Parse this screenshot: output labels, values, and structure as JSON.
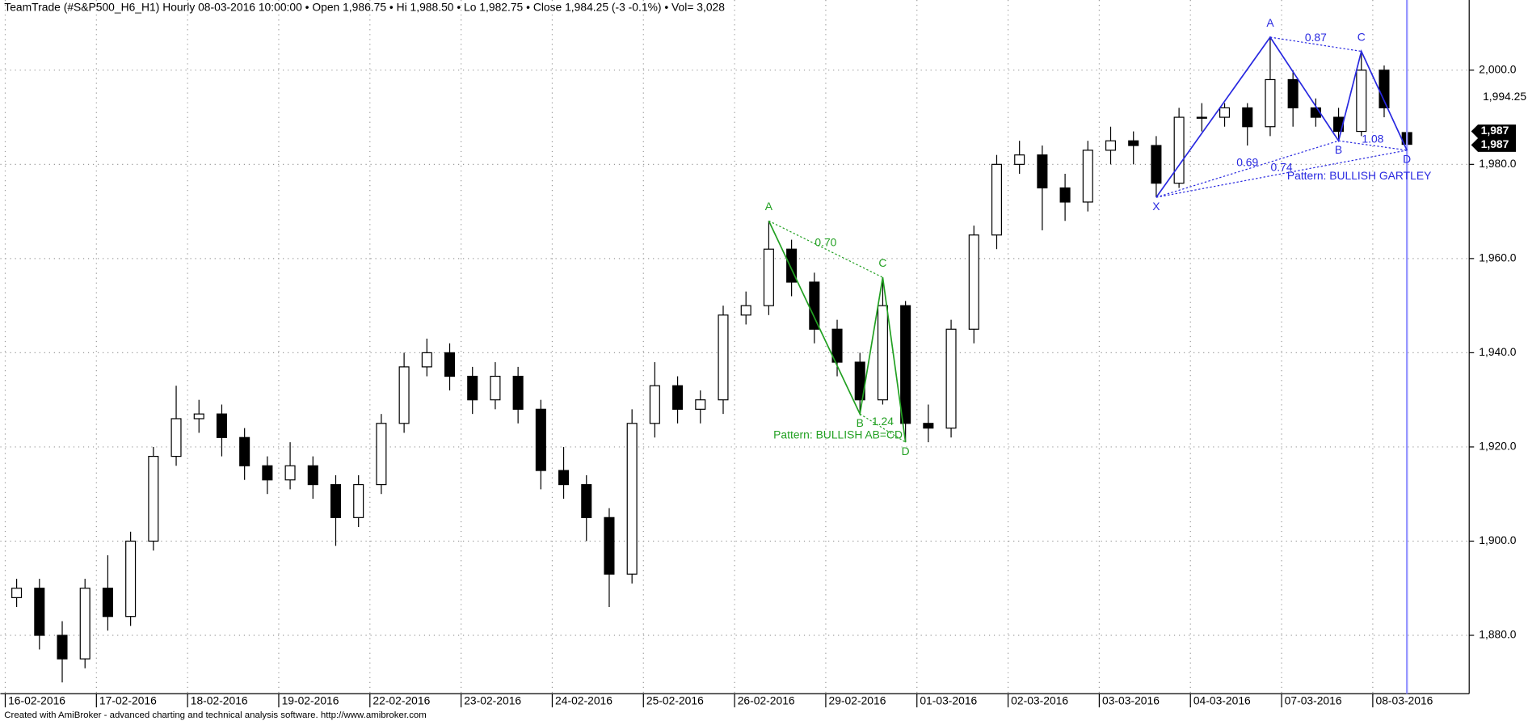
{
  "chart_data": {
    "type": "candlestick",
    "title": "TeamTrade (#S&P500_H6_H1) Hourly  08-03-2016 10:00:00  •  Open 1,986.75  •  Hi 1,988.50  •  Lo 1,982.75  •  Close 1,984.25 (-3 -0.1%)  •  Vol= 3,028",
    "footer": "Created with AmiBroker - advanced charting and technical analysis software. http://www.amibroker.com",
    "categories": [
      "16-02-2016",
      null,
      null,
      null,
      "17-02-2016",
      null,
      null,
      null,
      "18-02-2016",
      null,
      null,
      null,
      "19-02-2016",
      null,
      null,
      null,
      "22-02-2016",
      null,
      null,
      null,
      "23-02-2016",
      null,
      null,
      null,
      "24-02-2016",
      null,
      null,
      null,
      "25-02-2016",
      null,
      null,
      null,
      "26-02-2016",
      null,
      null,
      null,
      "29-02-2016",
      null,
      null,
      null,
      "01-03-2016",
      null,
      null,
      null,
      "02-03-2016",
      null,
      null,
      null,
      "03-03-2016",
      null,
      null,
      null,
      "04-03-2016",
      null,
      null,
      null,
      "07-03-2016",
      null,
      null,
      null,
      "08-03-2016",
      null
    ],
    "open": [
      1888,
      1890,
      1880,
      1875,
      1890,
      1884,
      1900,
      1918,
      1926,
      1927,
      1922,
      1916,
      1913,
      1916,
      1912,
      1905,
      1912,
      1925,
      1937,
      1940,
      1935,
      1930,
      1935,
      1928,
      1915,
      1912,
      1905,
      1893,
      1925,
      1933,
      1928,
      1930,
      1948,
      1950,
      1962,
      1955,
      1945,
      1938,
      1930,
      1950,
      1925,
      1924,
      1945,
      1965,
      1980,
      1982,
      1975,
      1972,
      1983,
      1985,
      1984,
      1976,
      1990,
      1990,
      1992,
      1988,
      1998,
      1992,
      1990,
      1987,
      2000,
      1986.75
    ],
    "high": [
      1892,
      1892,
      1883,
      1892,
      1897,
      1902,
      1920,
      1933,
      1930,
      1929,
      1924,
      1918,
      1921,
      1918,
      1914,
      1914,
      1927,
      1940,
      1943,
      1942,
      1937,
      1938,
      1937,
      1930,
      1920,
      1914,
      1907,
      1928,
      1938,
      1935,
      1932,
      1950,
      1953,
      1968,
      1964,
      1957,
      1947,
      1940,
      1956,
      1951,
      1929,
      1947,
      1967,
      1982,
      1985,
      1984,
      1978,
      1985,
      1988,
      1987,
      1986,
      1992,
      1993,
      1993,
      1993,
      2007,
      2000,
      1994,
      1992,
      2004,
      2001,
      1988.5
    ],
    "low": [
      1886,
      1877,
      1870,
      1873,
      1881,
      1882,
      1898,
      1916,
      1923,
      1918,
      1913,
      1910,
      1911,
      1909,
      1899,
      1903,
      1910,
      1923,
      1935,
      1932,
      1927,
      1928,
      1925,
      1911,
      1909,
      1900,
      1886,
      1891,
      1922,
      1925,
      1925,
      1927,
      1946,
      1948,
      1952,
      1942,
      1935,
      1927,
      1929,
      1921,
      1921,
      1922,
      1942,
      1962,
      1978,
      1966,
      1968,
      1970,
      1980,
      1980,
      1973,
      1975,
      1987,
      1988,
      1984,
      1986,
      1988,
      1988,
      1985,
      1986,
      1990,
      1982.75
    ],
    "close": [
      1890,
      1880,
      1875,
      1890,
      1884,
      1900,
      1918,
      1926,
      1927,
      1922,
      1916,
      1913,
      1916,
      1912,
      1905,
      1912,
      1925,
      1937,
      1940,
      1935,
      1930,
      1935,
      1928,
      1915,
      1912,
      1905,
      1893,
      1925,
      1933,
      1928,
      1930,
      1948,
      1950,
      1962,
      1955,
      1945,
      1938,
      1930,
      1950,
      1925,
      1924,
      1945,
      1965,
      1980,
      1982,
      1975,
      1972,
      1983,
      1985,
      1984,
      1976,
      1990,
      1990,
      1992,
      1988,
      1998,
      1992,
      1990,
      1987,
      2000,
      1992,
      1984.25
    ],
    "ylim": [
      1867.6,
      2014.9
    ],
    "yticks": [
      {
        "value": 1880,
        "label": "1,880.0"
      },
      {
        "value": 1900,
        "label": "1,900.0"
      },
      {
        "value": 1920,
        "label": "1,920.0"
      },
      {
        "value": 1940,
        "label": "1,940.0"
      },
      {
        "value": 1960,
        "label": "1,960.0"
      },
      {
        "value": 1980,
        "label": "1,980.0"
      },
      {
        "value": 2000,
        "label": "2,000.0"
      }
    ],
    "grid": true,
    "up_color": "#ffffff",
    "down_color": "#000000",
    "cursor_color": "#9999ff",
    "price_labels": [
      {
        "value": 1994.25,
        "label": "1,994.25"
      },
      {
        "value": 1987,
        "label": "1,987",
        "box": true
      },
      {
        "value": 1987,
        "label": "1,987",
        "box": true
      }
    ],
    "patterns": [
      {
        "name": "Pattern: BULLISH AB=CD",
        "color": "#22a022",
        "points": [
          {
            "label": "A",
            "index": 33,
            "value": 1968
          },
          {
            "label": "B",
            "index": 37,
            "value": 1927
          },
          {
            "label": "C",
            "index": 38,
            "value": 1956
          },
          {
            "label": "D",
            "index": 39,
            "value": 1921
          }
        ],
        "ratios": [
          "0.70",
          "1.24"
        ]
      },
      {
        "name": "Pattern: BULLISH GARTLEY",
        "color": "#2828e0",
        "points": [
          {
            "label": "X",
            "index": 50,
            "value": 1973
          },
          {
            "label": "A",
            "index": 55,
            "value": 2007
          },
          {
            "label": "B",
            "index": 58,
            "value": 1985
          },
          {
            "label": "C",
            "index": 59,
            "value": 2004
          },
          {
            "label": "D",
            "index": 61,
            "value": 1983
          }
        ],
        "ratios": [
          "0.87",
          "1.08",
          "0.69",
          "0.74"
        ]
      }
    ]
  }
}
